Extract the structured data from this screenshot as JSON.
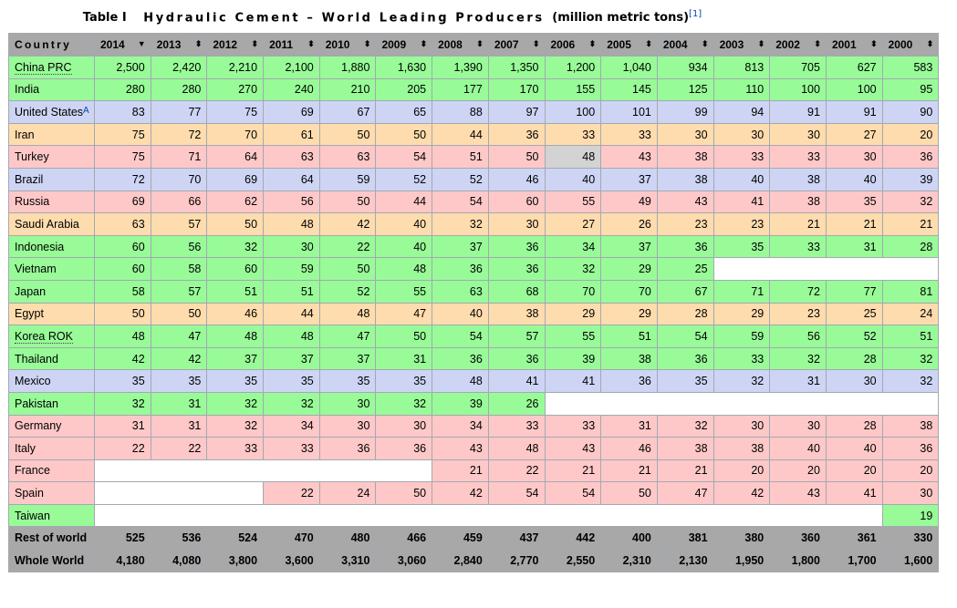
{
  "title": {
    "table_label": "Table I",
    "main": "Hydraulic Cement – World Leading Producers",
    "units": "(million metric tons)",
    "ref": "[1]"
  },
  "columns": [
    "Country",
    "2014",
    "2013",
    "2012",
    "2011",
    "2010",
    "2009",
    "2008",
    "2007",
    "2006",
    "2005",
    "2004",
    "2003",
    "2002",
    "2001",
    "2000"
  ],
  "sort_icons": {
    "sorted_desc": "▼",
    "unsorted": "⬍"
  },
  "rows": [
    {
      "country": "China PRC",
      "country_sup": "",
      "color": "green",
      "dotted": true,
      "cells": [
        "2,500",
        "2,420",
        "2,210",
        "2,100",
        "1,880",
        "1,630",
        "1,390",
        "1,350",
        "1,200",
        "1,040",
        "934",
        "813",
        "705",
        "627",
        "583"
      ]
    },
    {
      "country": "India",
      "country_sup": "",
      "color": "green",
      "dotted": false,
      "cells": [
        "280",
        "280",
        "270",
        "240",
        "210",
        "205",
        "177",
        "170",
        "155",
        "145",
        "125",
        "110",
        "100",
        "100",
        "95"
      ]
    },
    {
      "country": "United States",
      "country_sup": "A",
      "color": "blue",
      "dotted": false,
      "cells": [
        "83",
        "77",
        "75",
        "69",
        "67",
        "65",
        "88",
        "97",
        "100",
        "101",
        "99",
        "94",
        "91",
        "91",
        "90"
      ]
    },
    {
      "country": "Iran",
      "country_sup": "",
      "color": "orange",
      "dotted": false,
      "cells": [
        "75",
        "72",
        "70",
        "61",
        "50",
        "50",
        "44",
        "36",
        "33",
        "33",
        "30",
        "30",
        "30",
        "27",
        "20"
      ]
    },
    {
      "country": "Turkey",
      "country_sup": "",
      "color": "pink",
      "dotted": false,
      "cells": [
        "75",
        "71",
        "64",
        "63",
        "63",
        "54",
        "51",
        "50",
        "48",
        "43",
        "38",
        "33",
        "33",
        "30",
        "36"
      ]
    },
    {
      "country": "Brazil",
      "country_sup": "",
      "color": "blue",
      "dotted": false,
      "cells": [
        "72",
        "70",
        "69",
        "64",
        "59",
        "52",
        "52",
        "46",
        "40",
        "37",
        "38",
        "40",
        "38",
        "40",
        "39"
      ]
    },
    {
      "country": "Russia",
      "country_sup": "",
      "color": "pink",
      "dotted": false,
      "cells": [
        "69",
        "66",
        "62",
        "56",
        "50",
        "44",
        "54",
        "60",
        "55",
        "49",
        "43",
        "41",
        "38",
        "35",
        "32"
      ]
    },
    {
      "country": "Saudi Arabia",
      "country_sup": "",
      "color": "orange",
      "dotted": false,
      "cells": [
        "63",
        "57",
        "50",
        "48",
        "42",
        "40",
        "32",
        "30",
        "27",
        "26",
        "23",
        "23",
        "21",
        "21",
        "21"
      ]
    },
    {
      "country": "Indonesia",
      "country_sup": "",
      "color": "green",
      "dotted": false,
      "cells": [
        "60",
        "56",
        "32",
        "30",
        "22",
        "40",
        "37",
        "36",
        "34",
        "37",
        "36",
        "35",
        "33",
        "31",
        "28"
      ]
    },
    {
      "country": "Vietnam",
      "country_sup": "",
      "color": "green",
      "dotted": false,
      "cells": [
        "60",
        "58",
        "60",
        "59",
        "50",
        "48",
        "36",
        "36",
        "32",
        "29",
        "25",
        "",
        "",
        "",
        ""
      ]
    },
    {
      "country": "Japan",
      "country_sup": "",
      "color": "green",
      "dotted": false,
      "cells": [
        "58",
        "57",
        "51",
        "51",
        "52",
        "55",
        "63",
        "68",
        "70",
        "70",
        "67",
        "71",
        "72",
        "77",
        "81"
      ]
    },
    {
      "country": "Egypt",
      "country_sup": "",
      "color": "orange",
      "dotted": false,
      "cells": [
        "50",
        "50",
        "46",
        "44",
        "48",
        "47",
        "40",
        "38",
        "29",
        "29",
        "28",
        "29",
        "23",
        "25",
        "24"
      ]
    },
    {
      "country": "Korea ROK",
      "country_sup": "",
      "color": "green",
      "dotted": true,
      "cells": [
        "48",
        "47",
        "48",
        "48",
        "47",
        "50",
        "54",
        "57",
        "55",
        "51",
        "54",
        "59",
        "56",
        "52",
        "51"
      ]
    },
    {
      "country": "Thailand",
      "country_sup": "",
      "color": "green",
      "dotted": false,
      "cells": [
        "42",
        "42",
        "37",
        "37",
        "37",
        "31",
        "36",
        "36",
        "39",
        "38",
        "36",
        "33",
        "32",
        "28",
        "32"
      ]
    },
    {
      "country": "Mexico",
      "country_sup": "",
      "color": "blue",
      "dotted": false,
      "cells": [
        "35",
        "35",
        "35",
        "35",
        "35",
        "35",
        "48",
        "41",
        "41",
        "36",
        "35",
        "32",
        "31",
        "30",
        "32"
      ]
    },
    {
      "country": "Pakistan",
      "country_sup": "",
      "color": "green",
      "dotted": false,
      "cells": [
        "32",
        "31",
        "32",
        "32",
        "30",
        "32",
        "39",
        "26",
        "",
        "",
        "",
        "",
        "",
        "",
        ""
      ]
    },
    {
      "country": "Germany",
      "country_sup": "",
      "color": "pink",
      "dotted": false,
      "cells": [
        "31",
        "31",
        "32",
        "34",
        "30",
        "30",
        "34",
        "33",
        "33",
        "31",
        "32",
        "30",
        "30",
        "28",
        "38"
      ]
    },
    {
      "country": "Italy",
      "country_sup": "",
      "color": "pink",
      "dotted": false,
      "cells": [
        "22",
        "22",
        "33",
        "33",
        "36",
        "36",
        "43",
        "48",
        "43",
        "46",
        "38",
        "38",
        "40",
        "40",
        "36"
      ]
    },
    {
      "country": "France",
      "country_sup": "",
      "color": "pink",
      "dotted": false,
      "cells": [
        "",
        "",
        "",
        "",
        "",
        "",
        "21",
        "22",
        "21",
        "21",
        "21",
        "20",
        "20",
        "20",
        "20"
      ]
    },
    {
      "country": "Spain",
      "country_sup": "",
      "color": "pink",
      "dotted": false,
      "cells": [
        "",
        "",
        "",
        "22",
        "24",
        "50",
        "42",
        "54",
        "54",
        "50",
        "47",
        "42",
        "43",
        "41",
        "30"
      ]
    },
    {
      "country": "Taiwan",
      "country_sup": "",
      "color": "green",
      "dotted": false,
      "cells": [
        "",
        "",
        "",
        "",
        "",
        "",
        "",
        "",
        "",
        "",
        "",
        "",
        "",
        "",
        "19"
      ]
    },
    {
      "country": "Rest of world",
      "country_sup": "",
      "color": "gray",
      "dotted": false,
      "cells": [
        "525",
        "536",
        "524",
        "470",
        "480",
        "466",
        "459",
        "437",
        "442",
        "400",
        "381",
        "380",
        "360",
        "361",
        "330"
      ]
    },
    {
      "country": "Whole World",
      "country_sup": "",
      "color": "gray",
      "dotted": false,
      "cells": [
        "4,180",
        "4,080",
        "3,800",
        "3,600",
        "3,310",
        "3,060",
        "2,840",
        "2,770",
        "2,550",
        "2,310",
        "2,130",
        "1,950",
        "1,800",
        "1,700",
        "1,600"
      ]
    }
  ],
  "highlight_cells": [
    {
      "row": "Turkey",
      "column": "2006",
      "color": "#d3d3d3"
    }
  ],
  "colors": {
    "green": "#98fb98",
    "blue": "#cdd4f4",
    "orange": "#ffdcad",
    "pink": "#ffc8c8",
    "gray": "#a8a8a8",
    "link": "#0645ad"
  }
}
